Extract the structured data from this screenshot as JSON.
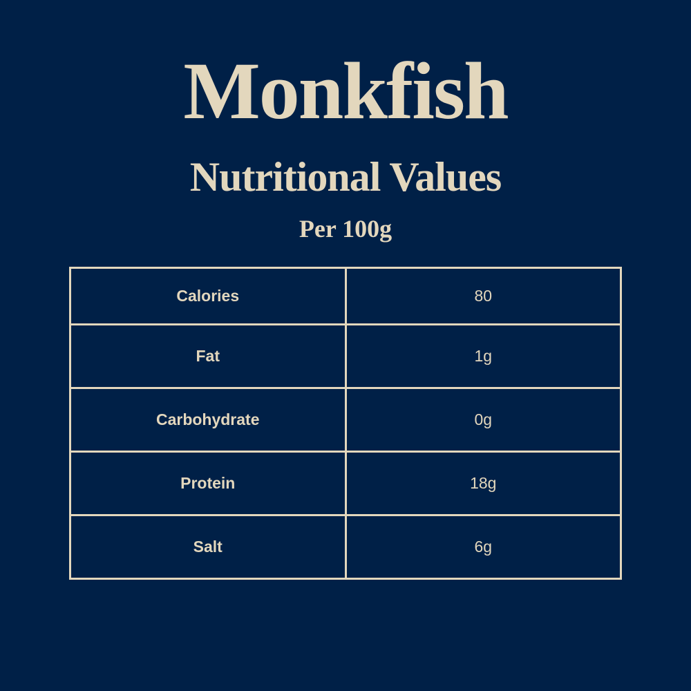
{
  "title": "Monkfish",
  "subtitle": "Nutritional Values",
  "serving": "Per 100g",
  "colors": {
    "background": "#002047",
    "text": "#e3d7bd"
  },
  "rows": [
    {
      "label": "Calories",
      "value": "80"
    },
    {
      "label": "Fat",
      "value": "1g"
    },
    {
      "label": "Carbohydrate",
      "value": "0g"
    },
    {
      "label": "Protein",
      "value": "18g"
    },
    {
      "label": "Salt",
      "value": "6g"
    }
  ]
}
